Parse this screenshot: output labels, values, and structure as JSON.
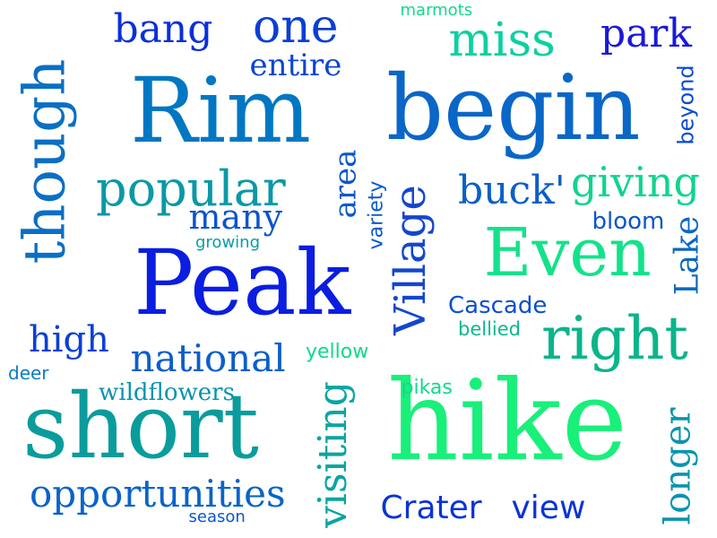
{
  "words": [
    {
      "id": "rim",
      "text": "Rim",
      "color": "#0077c2"
    },
    {
      "id": "begin",
      "text": "begin",
      "color": "#0a66c7"
    },
    {
      "id": "peak",
      "text": "Peak",
      "color": "#0a1de0"
    },
    {
      "id": "hike",
      "text": "hike",
      "color": "#18f07a"
    },
    {
      "id": "short",
      "text": "short",
      "color": "#0a9c9c"
    },
    {
      "id": "even",
      "text": "Even",
      "color": "#14e28a"
    },
    {
      "id": "right",
      "text": "right",
      "color": "#0ab58a"
    },
    {
      "id": "though",
      "text": "though",
      "color": "#0a6fc4"
    },
    {
      "id": "popular",
      "text": "popular",
      "color": "#0a98a7"
    },
    {
      "id": "village",
      "text": "Village",
      "color": "#1446cf"
    },
    {
      "id": "opportunities",
      "text": "opportunities",
      "color": "#0a63c9"
    },
    {
      "id": "national",
      "text": "national",
      "color": "#0a5fca"
    },
    {
      "id": "crater",
      "text": "Crater",
      "color": "#0a33d8"
    },
    {
      "id": "view",
      "text": "view",
      "color": "#0a34d8"
    },
    {
      "id": "one",
      "text": "one",
      "color": "#0a3ed5"
    },
    {
      "id": "bang",
      "text": "bang",
      "color": "#0a2fd9"
    },
    {
      "id": "miss",
      "text": "miss",
      "color": "#0ad1a0"
    },
    {
      "id": "park",
      "text": "park",
      "color": "#1a19d9"
    },
    {
      "id": "giving",
      "text": "giving",
      "color": "#10d48e"
    },
    {
      "id": "buck",
      "text": "buck'",
      "color": "#0a5ec9"
    },
    {
      "id": "visiting",
      "text": "visiting",
      "color": "#0aa5a3"
    },
    {
      "id": "longer",
      "text": "longer",
      "color": "#0a94ae"
    },
    {
      "id": "lake",
      "text": "Lake",
      "color": "#0a67c4"
    },
    {
      "id": "many",
      "text": "many",
      "color": "#0a54cd"
    },
    {
      "id": "area",
      "text": "area",
      "color": "#0a58cb"
    },
    {
      "id": "high",
      "text": "high",
      "color": "#0a40d4"
    },
    {
      "id": "entire",
      "text": "entire",
      "color": "#0a44d3"
    },
    {
      "id": "wildflowers",
      "text": "wildflowers",
      "color": "#0a93ad"
    },
    {
      "id": "cascade",
      "text": "Cascade",
      "color": "#0a4fcf"
    },
    {
      "id": "bloom",
      "text": "bloom",
      "color": "#0a56cc"
    },
    {
      "id": "beyond",
      "text": "beyond",
      "color": "#0a4bd1"
    },
    {
      "id": "variety",
      "text": "variety",
      "color": "#0a5bca"
    },
    {
      "id": "bellied",
      "text": "bellied",
      "color": "#0ab891"
    },
    {
      "id": "yellow",
      "text": "yellow",
      "color": "#12d88c"
    },
    {
      "id": "pikas",
      "text": "pikas",
      "color": "#12d88c"
    },
    {
      "id": "growing",
      "text": "growing",
      "color": "#0a9ca7"
    },
    {
      "id": "deer",
      "text": "deer",
      "color": "#0a7cc0"
    },
    {
      "id": "season",
      "text": "season",
      "color": "#0a57cc"
    },
    {
      "id": "marmots",
      "text": "marmots",
      "color": "#12d88c"
    }
  ]
}
